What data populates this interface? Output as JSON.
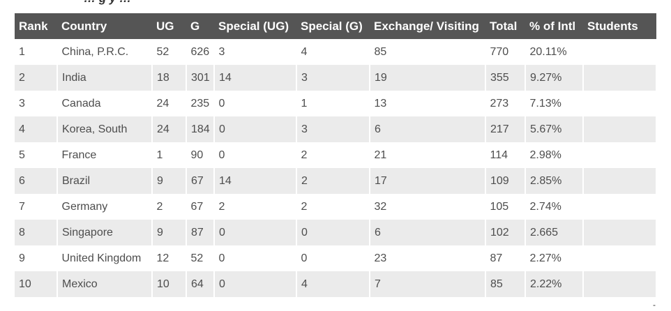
{
  "page": {
    "heading_fragment": "… g     y …"
  },
  "table": {
    "headers": [
      "Rank",
      "Country",
      "UG",
      "G",
      "Special (UG)",
      "Special (G)",
      "Exchange/ Visiting",
      "Total",
      "% of Intl",
      "Students"
    ],
    "rows": [
      [
        "1",
        "China, P.R.C.",
        "52",
        "626",
        "3",
        "4",
        "85",
        "770",
        "20.11%",
        ""
      ],
      [
        "2",
        "India",
        "18",
        "301",
        "14",
        "3",
        "19",
        "355",
        "9.27%",
        ""
      ],
      [
        "3",
        "Canada",
        "24",
        "235",
        "0",
        "1",
        "13",
        "273",
        "7.13%",
        ""
      ],
      [
        "4",
        "Korea, South",
        "24",
        "184",
        "0",
        "3",
        "6",
        "217",
        "5.67%",
        ""
      ],
      [
        "5",
        "France",
        "1",
        "90",
        "0",
        "2",
        "21",
        "114",
        "2.98%",
        ""
      ],
      [
        "6",
        "Brazil",
        "9",
        "67",
        "14",
        "2",
        "17",
        "109",
        "2.85%",
        ""
      ],
      [
        "7",
        "Germany",
        "2",
        "67",
        "2",
        "2",
        "32",
        "105",
        "2.74%",
        ""
      ],
      [
        "8",
        "Singapore",
        "9",
        "87",
        "0",
        "0",
        "6",
        "102",
        "2.665",
        ""
      ],
      [
        "9",
        "United Kingdom",
        "12",
        "52",
        "0",
        "0",
        "23",
        "87",
        "2.27%",
        ""
      ],
      [
        "10",
        "Mexico",
        "10",
        "64",
        "0",
        "4",
        "7",
        "85",
        "2.22%",
        ""
      ]
    ]
  },
  "colors": {
    "header_bg": "#555555",
    "header_text": "#ffffff",
    "stripe_bg": "#ebebeb"
  }
}
